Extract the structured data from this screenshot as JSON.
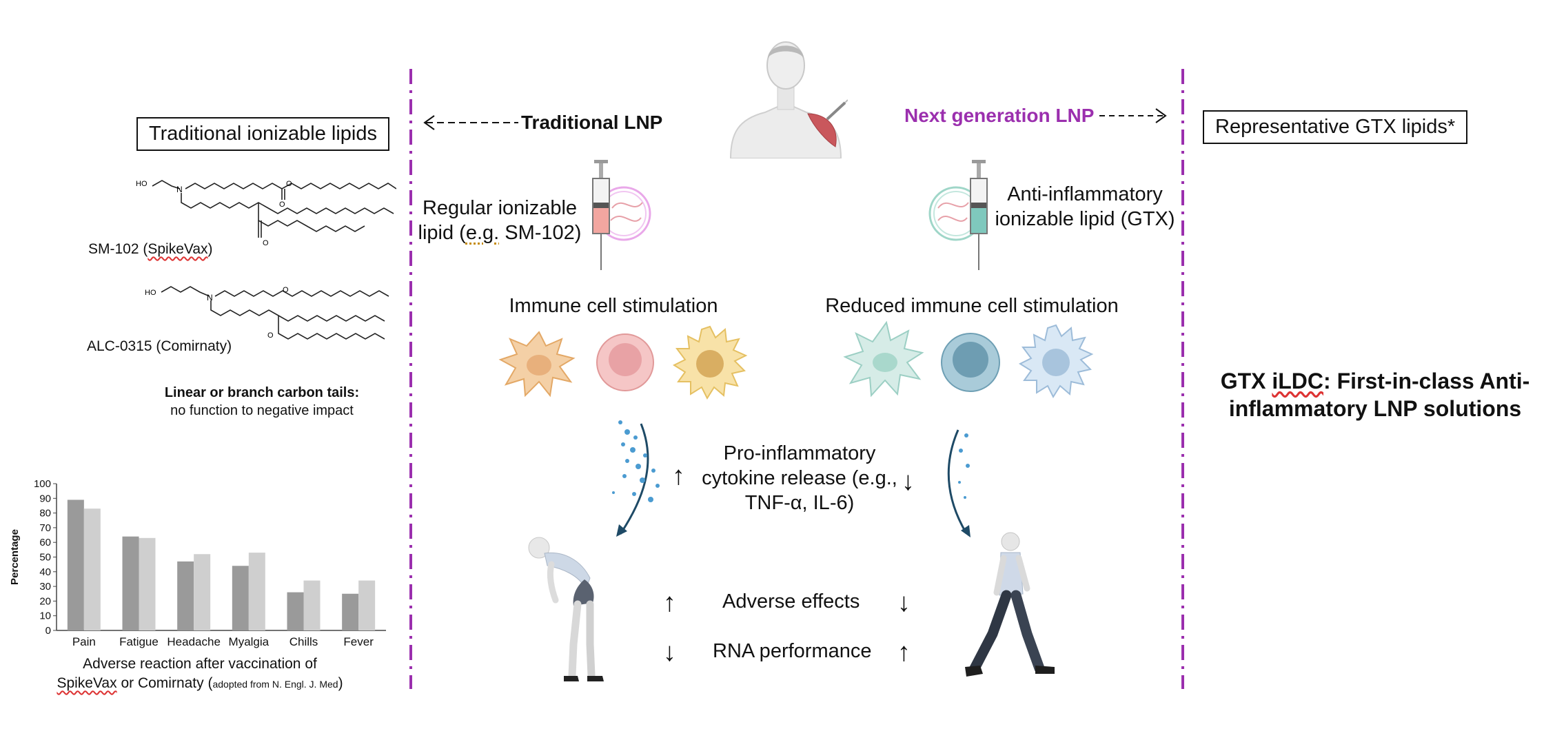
{
  "left": {
    "box_title": "Traditional ionizable lipids",
    "lipids": [
      {
        "name_pre": "SM-102 (",
        "name_brand": "SpikeVax",
        "name_post": ")",
        "ho": "HO",
        "n": "N",
        "o": "O"
      },
      {
        "name_pre": "ALC-0315 (Comirnaty)",
        "ho": "HO",
        "n": "N",
        "o": "O"
      }
    ],
    "tails_note_bold": "Linear or branch carbon tails:",
    "tails_note": "no function to negative impact"
  },
  "chart_caption": {
    "line1": "Adverse reaction after vaccination of",
    "line2_brand": "SpikeVax",
    "line2_mid": " or Comirnaty (",
    "line2_small": "adopted from N. Engl. J. Med",
    "line2_end": ")"
  },
  "chart_data": {
    "type": "bar",
    "ylabel": "Percentage",
    "ylim": [
      0,
      100
    ],
    "yticks": [
      0,
      10,
      20,
      30,
      40,
      50,
      60,
      70,
      80,
      90,
      100
    ],
    "categories": [
      "Pain",
      "Fatigue",
      "Headache",
      "Myalgia",
      "Chills",
      "Fever"
    ],
    "series": [
      {
        "values": [
          89,
          64,
          47,
          44,
          26,
          25
        ],
        "color": "#9a9a9a"
      },
      {
        "values": [
          83,
          63,
          52,
          53,
          34,
          34
        ],
        "color": "#cfcfcf"
      }
    ]
  },
  "center": {
    "traditional_label": "Traditional LNP",
    "next_label": "Next generation LNP",
    "regular_lipid_line1": "Regular ionizable",
    "regular_lipid_line2_a": "lipid (",
    "regular_lipid_line2_eg": "e.g.",
    "regular_lipid_line2_b": " SM-102)",
    "anti_lipid_line1": "Anti-inflammatory",
    "anti_lipid_line2": "ionizable lipid (GTX)",
    "immune_stim": "Immune cell stimulation",
    "reduced_stim": "Reduced immune cell stimulation",
    "cytokine_line1": "Pro-inflammatory",
    "cytokine_line2": "cytokine release (e.g.,",
    "cytokine_line3": "TNF-α, IL-6)",
    "adverse": "Adverse effects",
    "rna": "RNA performance",
    "up_arrow": "↑",
    "down_arrow": "↓"
  },
  "right": {
    "box_title": "Representative GTX lipids*",
    "headline_pre": "GTX ",
    "headline_brand": "iLDC",
    "headline_line1_post": ": First-in-class Anti-",
    "headline_line2": "inflammatory LNP solutions"
  },
  "colors": {
    "purple": "#9b2fae",
    "divider": "#9b2fae",
    "orange_cell": "#f3c99a",
    "pink_cell": "#f0b7bd",
    "yellow_cell": "#f6dc9a",
    "teal_cell": "#cfe7e3",
    "blue_cell": "#9fc3d3",
    "lightblue_cell": "#cddff0"
  }
}
